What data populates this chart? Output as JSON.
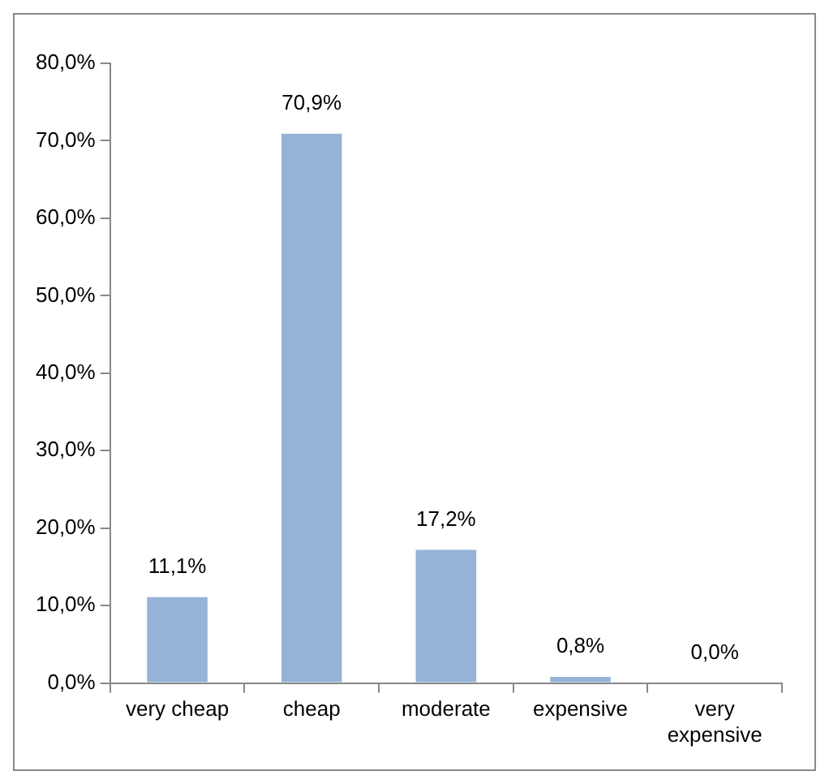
{
  "chart_data": {
    "type": "bar",
    "categories": [
      "very cheap",
      "cheap",
      "moderate",
      "expensive",
      "very expensive"
    ],
    "values": [
      11.1,
      70.9,
      17.2,
      0.8,
      0.0
    ],
    "value_labels": [
      "11,1%",
      "70,9%",
      "17,2%",
      "0,8%",
      "0,0%"
    ],
    "color": "#95b3d7",
    "ylim": [
      0,
      80
    ],
    "yticks": [
      {
        "value": 0,
        "label": "0,0%"
      },
      {
        "value": 10,
        "label": "10,0%"
      },
      {
        "value": 20,
        "label": "20,0%"
      },
      {
        "value": 30,
        "label": "30,0%"
      },
      {
        "value": 40,
        "label": "40,0%"
      },
      {
        "value": 50,
        "label": "50,0%"
      },
      {
        "value": 60,
        "label": "60,0%"
      },
      {
        "value": 70,
        "label": "70,0%"
      },
      {
        "value": 80,
        "label": "80,0%"
      }
    ],
    "grid": false,
    "legend": false
  }
}
